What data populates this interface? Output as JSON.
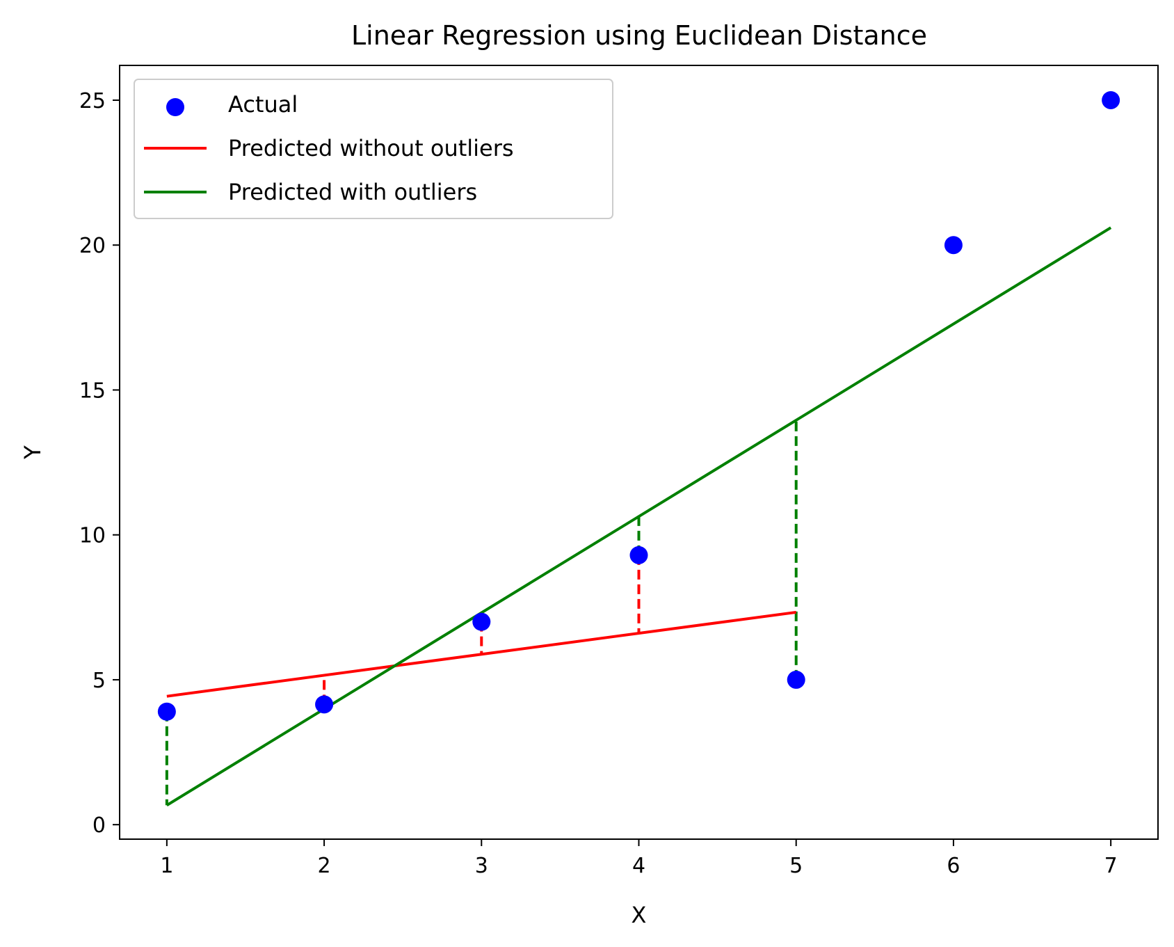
{
  "chart_data": {
    "type": "scatter",
    "title": "Linear Regression using Euclidean Distance",
    "xlabel": "X",
    "ylabel": "Y",
    "xlim": [
      0.7,
      7.3
    ],
    "ylim": [
      -0.5,
      26.2
    ],
    "xticks": [
      1,
      2,
      3,
      4,
      5,
      6,
      7
    ],
    "yticks": [
      0,
      5,
      10,
      15,
      20,
      25
    ],
    "grid": false,
    "legend_position": "top-left",
    "series": [
      {
        "name": "Actual",
        "kind": "scatter",
        "color": "#0000ff",
        "x": [
          1,
          2,
          3,
          4,
          5,
          6,
          7
        ],
        "y": [
          3.9,
          4.15,
          7.0,
          9.3,
          5.0,
          20.0,
          25.0
        ]
      },
      {
        "name": "Predicted without outliers",
        "kind": "line",
        "color": "#ff0000",
        "x": [
          1,
          5
        ],
        "y": [
          4.43,
          7.33
        ]
      },
      {
        "name": "Predicted with outliers",
        "kind": "line",
        "color": "#008000",
        "x": [
          1,
          7
        ],
        "y": [
          0.67,
          20.6
        ]
      }
    ],
    "residuals": [
      {
        "color": "#ff0000",
        "x": 2,
        "y1": 4.15,
        "y2": 5.15
      },
      {
        "color": "#ff0000",
        "x": 3,
        "y1": 7.0,
        "y2": 5.88
      },
      {
        "color": "#ff0000",
        "x": 4,
        "y1": 9.3,
        "y2": 6.6
      },
      {
        "color": "#008000",
        "x": 1,
        "y1": 3.9,
        "y2": 0.67
      },
      {
        "color": "#008000",
        "x": 4,
        "y1": 9.3,
        "y2": 10.63
      },
      {
        "color": "#008000",
        "x": 5,
        "y1": 5.0,
        "y2": 13.95
      }
    ]
  }
}
